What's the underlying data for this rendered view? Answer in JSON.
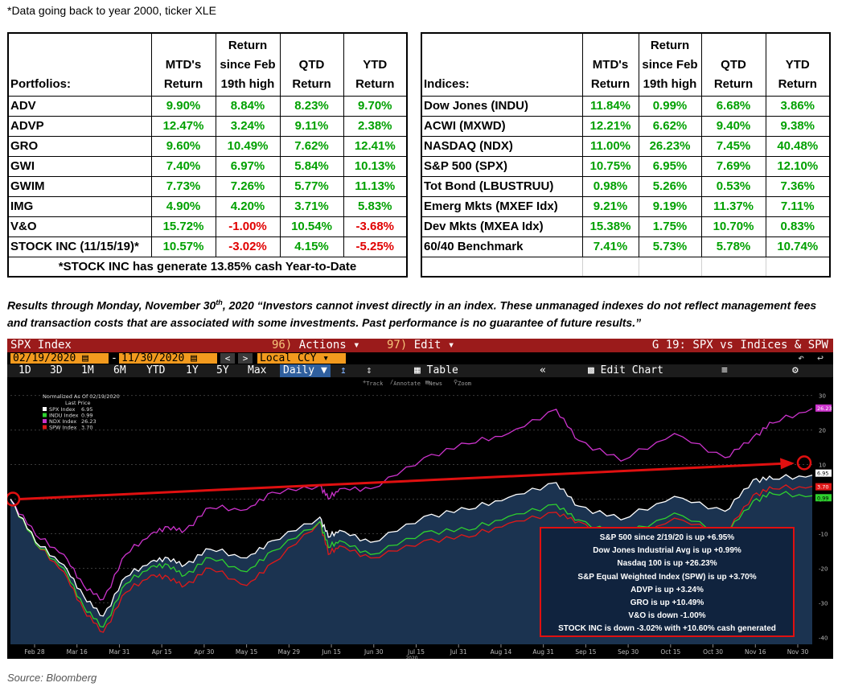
{
  "top_note": "*Data going back to year 2000, ticker XLE",
  "portfolio_table": {
    "headers": [
      "Portfolios:",
      "MTD's\nReturn",
      "Return\nsince Feb\n19th high",
      "QTD\nReturn",
      "YTD\nReturn"
    ],
    "rows": [
      {
        "name": "ADV",
        "cells": [
          "9.90%",
          "8.84%",
          "8.23%",
          "9.70%"
        ],
        "neg": [
          false,
          false,
          false,
          false
        ]
      },
      {
        "name": "ADVP",
        "cells": [
          "12.47%",
          "3.24%",
          "9.11%",
          "2.38%"
        ],
        "neg": [
          false,
          false,
          false,
          false
        ]
      },
      {
        "name": "GRO",
        "cells": [
          "9.60%",
          "10.49%",
          "7.62%",
          "12.41%"
        ],
        "neg": [
          false,
          false,
          false,
          false
        ]
      },
      {
        "name": "GWI",
        "cells": [
          "7.40%",
          "6.97%",
          "5.84%",
          "10.13%"
        ],
        "neg": [
          false,
          false,
          false,
          false
        ]
      },
      {
        "name": "GWIM",
        "cells": [
          "7.73%",
          "7.26%",
          "5.77%",
          "11.13%"
        ],
        "neg": [
          false,
          false,
          false,
          false
        ]
      },
      {
        "name": "IMG",
        "cells": [
          "4.90%",
          "4.20%",
          "3.71%",
          "5.83%"
        ],
        "neg": [
          false,
          false,
          false,
          false
        ]
      },
      {
        "name": "V&O",
        "cells": [
          "15.72%",
          "-1.00%",
          "10.54%",
          "-3.68%"
        ],
        "neg": [
          false,
          true,
          false,
          true
        ]
      },
      {
        "name": "STOCK INC (11/15/19)*",
        "cells": [
          "10.57%",
          "-3.02%",
          "4.15%",
          "-5.25%"
        ],
        "neg": [
          false,
          true,
          false,
          true
        ]
      }
    ],
    "footnote": "*STOCK INC has generate 13.85% cash Year-to-Date"
  },
  "index_table": {
    "headers": [
      "Indices:",
      "MTD's\nReturn",
      "Return\nsince Feb\n19th high",
      "QTD\nReturn",
      "YTD\nReturn"
    ],
    "rows": [
      {
        "name": "Dow Jones (INDU)",
        "cells": [
          "11.84%",
          "0.99%",
          "6.68%",
          "3.86%"
        ]
      },
      {
        "name": "ACWI (MXWD)",
        "cells": [
          "12.21%",
          "6.62%",
          "9.40%",
          "9.38%"
        ]
      },
      {
        "name": "NASDAQ (NDX)",
        "cells": [
          "11.00%",
          "26.23%",
          "7.45%",
          "40.48%"
        ]
      },
      {
        "name": "S&P 500 (SPX)",
        "cells": [
          "10.75%",
          "6.95%",
          "7.69%",
          "12.10%"
        ]
      },
      {
        "name": "Tot Bond (LBUSTRUU)",
        "cells": [
          "0.98%",
          "5.26%",
          "0.53%",
          "7.36%"
        ]
      },
      {
        "name": "Emerg Mkts (MXEF Idx)",
        "cells": [
          "9.21%",
          "9.19%",
          "11.37%",
          "7.11%"
        ]
      },
      {
        "name": "Dev Mkts (MXEA Idx)",
        "cells": [
          "15.38%",
          "1.75%",
          "10.70%",
          "0.83%"
        ]
      },
      {
        "name": "60/40 Benchmark",
        "cells": [
          "7.41%",
          "5.73%",
          "5.78%",
          "10.74%"
        ]
      }
    ]
  },
  "disclaimer": {
    "prefix": "Results through Monday, November 30",
    "sup": "th",
    "rest": ", 2020  “Investors cannot invest directly in an index.  These unmanaged indexes do not reflect management fees and transaction costs that are associated with some investments.  Past performance is no guarantee of future results.”"
  },
  "terminal": {
    "security": "SPX Index",
    "actions_num": "96)",
    "actions_label": "Actions ▾",
    "edit_num": "97)",
    "edit_label": "Edit ▾",
    "screen_title": "G 19: SPX vs Indices & SPW",
    "start_date": "02/19/2020",
    "end_date": "11/30/2020",
    "currency": "Local CCY",
    "periods": [
      "1D",
      "3D",
      "1M",
      "6M",
      "YTD",
      "1Y",
      "5Y",
      "Max"
    ],
    "frequency": "Daily ▼",
    "table_label": "Table",
    "edit_chart": "Edit Chart",
    "tools": [
      "Track",
      "Annotate",
      "News",
      "Zoom"
    ]
  },
  "chart_data": {
    "type": "line",
    "title": "",
    "legend_title": "Normalized As Of 02/19/2020",
    "legend_subtitle": "Last Price",
    "legend_position": "top-left",
    "x_ticks": [
      "Feb 28",
      "Mar 16",
      "Mar 31",
      "Apr 15",
      "Apr 30",
      "May 15",
      "May 29",
      "Jun 15",
      "Jun 30",
      "Jul 15",
      "Jul 31",
      "Aug 14",
      "Aug 31",
      "Sep 15",
      "Sep 30",
      "Oct 15",
      "Oct 30",
      "Nov 16",
      "Nov 30"
    ],
    "x_year_label": "2020",
    "y_ticks": [
      30,
      20,
      10,
      0,
      -10,
      -20,
      -30,
      -40
    ],
    "ylim": [
      -42,
      32
    ],
    "x_dates": [
      "2020-02-19",
      "2020-02-28",
      "2020-03-09",
      "2020-03-16",
      "2020-03-23",
      "2020-03-31",
      "2020-04-09",
      "2020-04-15",
      "2020-04-21",
      "2020-04-30",
      "2020-05-13",
      "2020-05-22",
      "2020-06-08",
      "2020-06-11",
      "2020-06-15",
      "2020-06-26",
      "2020-07-15",
      "2020-07-31",
      "2020-08-14",
      "2020-08-31",
      "2020-09-08",
      "2020-09-23",
      "2020-10-12",
      "2020-10-30",
      "2020-11-09",
      "2020-11-16",
      "2020-11-30"
    ],
    "series": [
      {
        "name": "SPX Index",
        "last": "6.95",
        "color": "#ffffff",
        "fill": true,
        "values": [
          0,
          -12.5,
          -19,
          -28,
          -33.8,
          -22.5,
          -18,
          -17,
          -19,
          -14.5,
          -17,
          -12,
          -5.2,
          -11,
          -9,
          -12.5,
          -5,
          -3,
          0.5,
          4.8,
          -2,
          -6,
          0.8,
          -3.5,
          5.6,
          5.8,
          6.95
        ]
      },
      {
        "name": "INDU Index",
        "last": "0.99",
        "color": "#2ed12e",
        "fill": false,
        "values": [
          0,
          -13,
          -20,
          -31,
          -37,
          -24.5,
          -19.5,
          -19,
          -22,
          -17,
          -21,
          -15,
          -6.5,
          -14,
          -12,
          -16,
          -9.5,
          -9,
          -5,
          -1.5,
          -6,
          -11,
          -4,
          -10,
          -0.5,
          1.5,
          0.99
        ]
      },
      {
        "name": "NDX Index",
        "last": "26.23",
        "color": "#cc33cc",
        "fill": false,
        "values": [
          0,
          -10.5,
          -16,
          -25,
          -29,
          -16,
          -10,
          -8,
          -9,
          -2.5,
          -3,
          2,
          4,
          0,
          3,
          3,
          12,
          16,
          19,
          26,
          17,
          11,
          19,
          12,
          18,
          22,
          26.23
        ]
      },
      {
        "name": "SPW Index",
        "last": "3.70",
        "color": "#e01818",
        "fill": false,
        "values": [
          0,
          -13,
          -21,
          -32,
          -38.5,
          -27,
          -22,
          -22.5,
          -25,
          -20,
          -25,
          -18.5,
          -6.5,
          -16,
          -13.5,
          -17,
          -12,
          -11,
          -7,
          -3.8,
          -6.5,
          -13,
          -5.5,
          -10,
          1.2,
          3,
          3.7
        ]
      }
    ]
  },
  "callout_lines": [
    "S&P 500 since 2/19/20 is up +6.95%",
    "Dow Jones Industrial Avg is up +0.99%",
    "Nasdaq 100 is up +26.23%",
    "S&P Equal Weighted Index (SPW) is up +3.70%",
    "ADVP is up +3.24%",
    "GRO is up +10.49%",
    "V&O is down -1.00%",
    "STOCK INC is down -3.02% with +10.60% cash generated"
  ],
  "source": "Source: Bloomberg"
}
